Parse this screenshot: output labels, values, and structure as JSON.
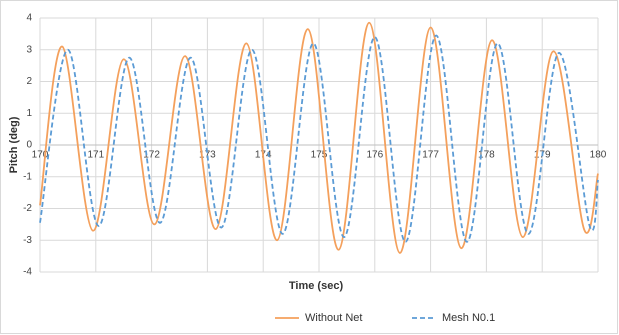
{
  "chart_data": {
    "type": "line",
    "x_label": "Time (sec)",
    "y_label": "Pitch (deg)",
    "xlim": [
      170,
      180
    ],
    "xticks": [
      170,
      171,
      172,
      173,
      174,
      175,
      176,
      177,
      178,
      179,
      180
    ],
    "ylim": [
      -4,
      4
    ],
    "yticks": [
      -4,
      -3,
      -2,
      -1,
      0,
      1,
      2,
      3,
      4
    ],
    "grid": true,
    "legend": "bottom",
    "series": [
      {
        "name": "Without Net",
        "color": "#f4a05c",
        "dash": false,
        "x": [
          170,
          170.4,
          170.95,
          171.5,
          172.05,
          172.6,
          173.15,
          173.7,
          174.25,
          174.8,
          175.35,
          175.9,
          176.45,
          177.0,
          177.55,
          178.1,
          178.65,
          179.2,
          179.75,
          180
        ],
        "values": [
          -1.9,
          3.1,
          -2.7,
          2.7,
          -2.5,
          2.8,
          -2.65,
          3.2,
          -3.0,
          3.65,
          -3.3,
          3.85,
          -3.4,
          3.7,
          -3.25,
          3.3,
          -2.9,
          2.95,
          -2.65,
          -0.9
        ]
      },
      {
        "name": "Mesh N0.1",
        "color": "#5b9bd5",
        "dash": true,
        "x": [
          170,
          170.5,
          171.05,
          171.6,
          172.15,
          172.7,
          173.25,
          173.8,
          174.35,
          174.9,
          175.45,
          176.0,
          176.55,
          177.1,
          177.65,
          178.2,
          178.75,
          179.3,
          179.85,
          180
        ],
        "values": [
          -2.45,
          3.0,
          -2.55,
          2.75,
          -2.45,
          2.75,
          -2.6,
          3.0,
          -2.8,
          3.2,
          -2.9,
          3.4,
          -3.05,
          3.45,
          -3.05,
          3.2,
          -2.8,
          2.9,
          -2.55,
          -1.1
        ]
      }
    ]
  }
}
